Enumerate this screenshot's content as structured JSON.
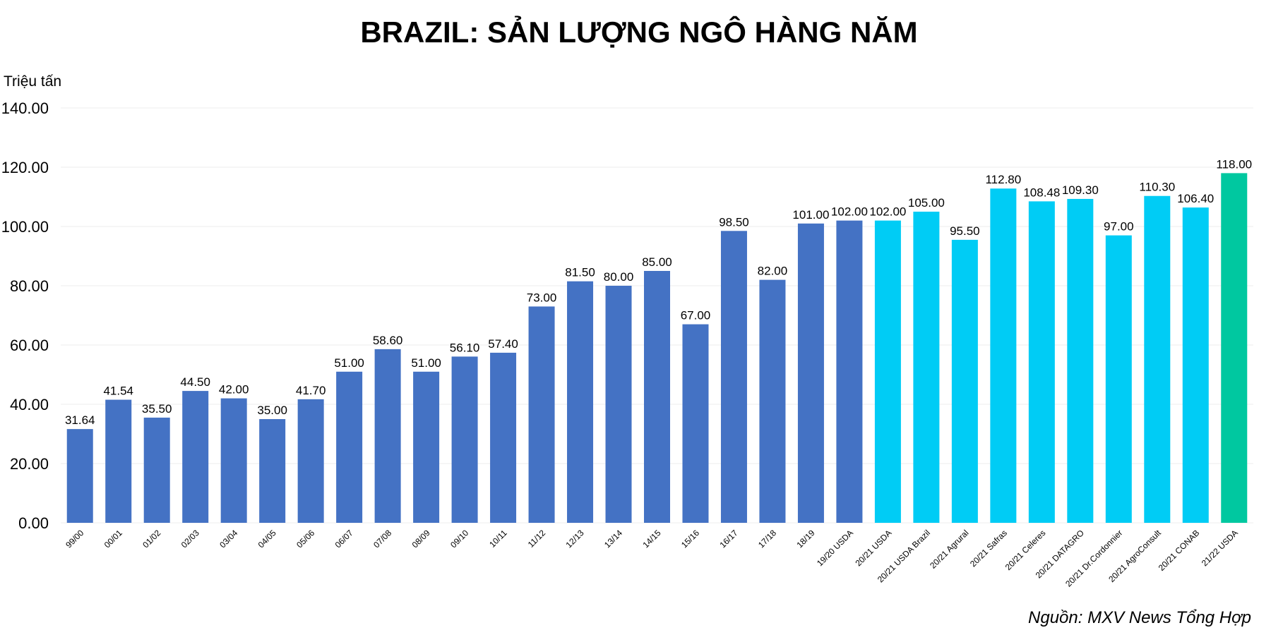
{
  "chart_data": {
    "type": "bar",
    "title": "BRAZIL: SẢN LƯỢNG NGÔ HÀNG NĂM",
    "ylabel": "Triệu tấn",
    "xlabel": "",
    "ylim": [
      0,
      140
    ],
    "yticks": [
      "0.00",
      "20.00",
      "40.00",
      "60.00",
      "80.00",
      "100.00",
      "120.00",
      "140.00"
    ],
    "grid": true,
    "categories": [
      "99/00",
      "00/01",
      "01/02",
      "02/03",
      "03/04",
      "04/05",
      "05/06",
      "06/07",
      "07/08",
      "08/09",
      "09/10",
      "10/11",
      "11/12",
      "12/13",
      "13/14",
      "14/15",
      "15/16",
      "16/17",
      "17/18",
      "18/19",
      "19/20 USDA",
      "20/21 USDA",
      "20/21 USDA Brazil",
      "20/21 Agrural",
      "20/21 Safras",
      "20/21 Celeres",
      "20/21 DATAGRO",
      "20/21 Dr.Cordonnier",
      "20/21 AgroConsult",
      "20/21 CONAB",
      "21/22 USDA"
    ],
    "values": [
      31.64,
      41.54,
      35.5,
      44.5,
      42.0,
      35.0,
      41.7,
      51.0,
      58.6,
      51.0,
      56.1,
      57.4,
      73.0,
      81.5,
      80.0,
      85.0,
      67.0,
      98.5,
      82.0,
      101.0,
      102.0,
      102.0,
      105.0,
      95.5,
      112.8,
      108.48,
      109.3,
      97.0,
      110.3,
      106.4,
      118.0
    ],
    "value_labels": [
      "31.64",
      "41.54",
      "35.50",
      "44.50",
      "42.00",
      "35.00",
      "41.70",
      "51.00",
      "58.60",
      "51.00",
      "56.10",
      "57.40",
      "73.00",
      "81.50",
      "80.00",
      "85.00",
      "67.00",
      "98.50",
      "82.00",
      "101.00",
      "102.00",
      "102.00",
      "105.00",
      "95.50",
      "112.80",
      "108.48",
      "109.30",
      "97.00",
      "110.30",
      "106.40",
      "118.00"
    ],
    "bar_groups": [
      "historical",
      "historical",
      "historical",
      "historical",
      "historical",
      "historical",
      "historical",
      "historical",
      "historical",
      "historical",
      "historical",
      "historical",
      "historical",
      "historical",
      "historical",
      "historical",
      "historical",
      "historical",
      "historical",
      "historical",
      "historical",
      "estimate",
      "estimate",
      "estimate",
      "estimate",
      "estimate",
      "estimate",
      "estimate",
      "estimate",
      "estimate",
      "forecast"
    ],
    "colors": {
      "historical": "#4472c4",
      "estimate": "#00ccf5",
      "forecast": "#00c8a0",
      "grid": "#eeeeee"
    }
  },
  "source": "Nguồn: MXV News Tổng Hợp"
}
